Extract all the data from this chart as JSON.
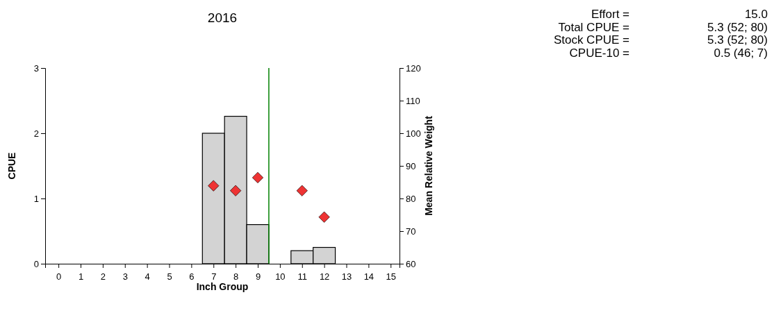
{
  "chart_data": {
    "type": "bar",
    "title": "2016",
    "xlabel": "Inch Group",
    "ylabel": "CPUE",
    "y2label": "Mean Relative Weight",
    "x": [
      0,
      1,
      2,
      3,
      4,
      5,
      6,
      7,
      8,
      9,
      10,
      11,
      12,
      13,
      14,
      15
    ],
    "series": [
      {
        "color": "#d3d3d3",
        "values": [
          0,
          0,
          0,
          0,
          0,
          0,
          0,
          2.0,
          2.26,
          0.6,
          0,
          0.2,
          0.25,
          0,
          0,
          0
        ]
      },
      {
        "type": "scatter",
        "axis": "y2",
        "color": "#ee3333",
        "marker": "diamond",
        "x": [
          7,
          8,
          9,
          11,
          12
        ],
        "values": [
          83.9,
          82.4,
          86.4,
          82.4,
          74.3
        ]
      }
    ],
    "xlim": [
      -0.6,
      15.4
    ],
    "xticks": [
      0,
      1,
      2,
      3,
      4,
      5,
      6,
      7,
      8,
      9,
      10,
      11,
      12,
      13,
      14,
      15
    ],
    "ylim": [
      0,
      3
    ],
    "yticks": [
      0,
      1,
      2,
      3
    ],
    "y2lim": [
      60,
      120
    ],
    "y2ticks": [
      60,
      70,
      80,
      90,
      100,
      110,
      120
    ],
    "ref_lines": [
      {
        "axis": "x",
        "value": 9.5,
        "color": "#008000"
      }
    ],
    "annotations": [
      "Effort =",
      "15.0",
      "Total CPUE =",
      "5.3 (52; 80)",
      "Stock CPUE =",
      "5.3 (52; 80)",
      "CPUE-10 =",
      "0.5 (46; 7)"
    ],
    "grid": false
  }
}
